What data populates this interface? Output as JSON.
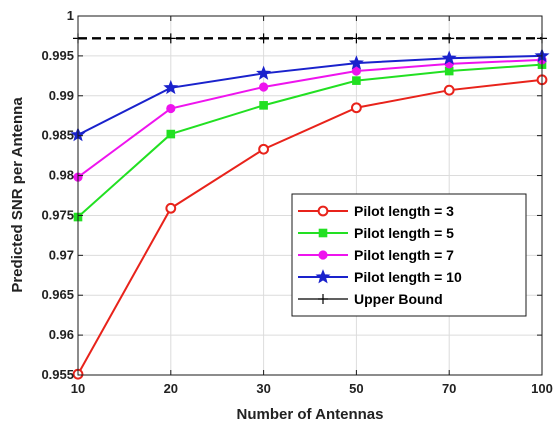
{
  "chart_data": {
    "type": "line",
    "title": "",
    "xlabel": "Number of Antennas",
    "ylabel": "Predicted SNR per Antenna",
    "categories": [
      "10",
      "20",
      "30",
      "50",
      "70",
      "100"
    ],
    "ylim": [
      0.955,
      1.0
    ],
    "yticks": [
      "0.955",
      "0.96",
      "0.965",
      "0.97",
      "0.975",
      "0.98",
      "0.985",
      "0.99",
      "0.995",
      "1"
    ],
    "grid": true,
    "legend_position": "lower-right",
    "series": [
      {
        "name": "Pilot length = 3",
        "color": "#e8231b",
        "marker": "circle",
        "values": [
          0.9551,
          0.9759,
          0.9833,
          0.9885,
          0.9907,
          0.992
        ]
      },
      {
        "name": "Pilot length = 5",
        "color": "#22e022",
        "marker": "square",
        "values": [
          0.9748,
          0.9852,
          0.9888,
          0.9919,
          0.9931,
          0.9939
        ]
      },
      {
        "name": "Pilot length = 7",
        "color": "#ee14ee",
        "marker": "circle",
        "values": [
          0.9798,
          0.9884,
          0.9911,
          0.9931,
          0.994,
          0.9945
        ]
      },
      {
        "name": "Pilot length = 10",
        "color": "#1a22cc",
        "marker": "star",
        "values": [
          0.9851,
          0.991,
          0.9928,
          0.9941,
          0.9947,
          0.995
        ]
      },
      {
        "name": "Upper Bound",
        "color": "#000000",
        "marker": "plus",
        "dashed": true,
        "values": [
          0.9972,
          0.9972,
          0.9972,
          0.9972,
          0.9972,
          0.9972
        ]
      }
    ]
  }
}
